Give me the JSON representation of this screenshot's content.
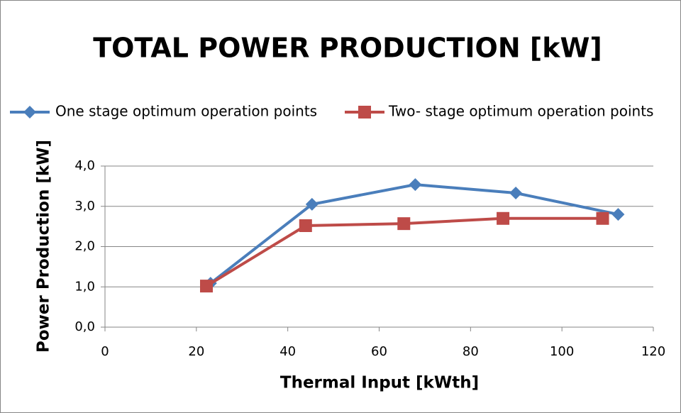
{
  "chart_data": {
    "type": "line",
    "title": "TOTAL POWER PRODUCTION [kW]",
    "x_label": "Thermal Input [kWth]",
    "y_label": "Power Production [kW]",
    "series": [
      {
        "name": "One stage optimum operation points",
        "color": "#4a7ebb",
        "marker": "diamond",
        "x": [
          23.1,
          45.3,
          67.9,
          89.9,
          112.3
        ],
        "values": [
          1.09,
          3.05,
          3.54,
          3.33,
          2.8
        ]
      },
      {
        "name": "Two- stage optimum operation points",
        "color": "#be4b48",
        "marker": "square",
        "x": [
          22.2,
          43.9,
          65.4,
          87.1,
          108.9
        ],
        "values": [
          1.02,
          2.52,
          2.57,
          2.7,
          2.7
        ]
      }
    ],
    "xlim": [
      0,
      120
    ],
    "xticks": [
      0,
      20,
      40,
      60,
      80,
      100,
      120
    ],
    "ylim": [
      0,
      4
    ],
    "yticks": [
      {
        "value": 0,
        "label": "0,0"
      },
      {
        "value": 1,
        "label": "1,0"
      },
      {
        "value": 2,
        "label": "2,0"
      },
      {
        "value": 3,
        "label": "3,0"
      },
      {
        "value": 4,
        "label": "4,0"
      }
    ],
    "grid": true,
    "legend": "top"
  }
}
